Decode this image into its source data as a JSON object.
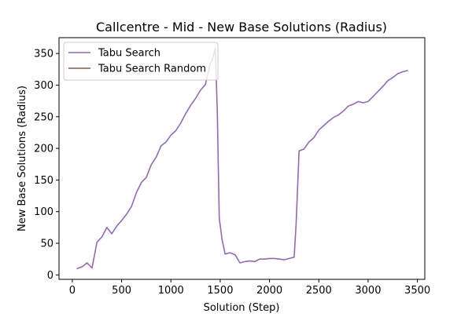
{
  "chart_data": {
    "type": "line",
    "title": "Callcentre - Mid - New Base Solutions (Radius)",
    "xlabel": "Solution (Step)",
    "ylabel": "New Base Solutions (Radius)",
    "xlim": [
      -135,
      3575
    ],
    "ylim": [
      -7,
      375
    ],
    "xticks": [
      0,
      500,
      1000,
      1500,
      2000,
      2500,
      3000,
      3500
    ],
    "yticks": [
      0,
      50,
      100,
      150,
      200,
      250,
      300,
      350
    ],
    "grid": false,
    "legend_position": "top-left",
    "series": [
      {
        "name": "Tabu Search",
        "color": "#9467bd",
        "x": [
          50,
          100,
          150,
          200,
          250,
          300,
          350,
          400,
          450,
          500,
          550,
          600,
          650,
          700,
          750,
          800,
          850,
          900,
          950,
          1000,
          1050,
          1100,
          1150,
          1200,
          1250,
          1300,
          1350,
          1400,
          1420,
          1450,
          1470,
          1490,
          1520,
          1550,
          1600,
          1650,
          1700,
          1750,
          1800,
          1850,
          1900,
          1950,
          2000,
          2050,
          2100,
          2150,
          2200,
          2250,
          2270,
          2300,
          2350,
          2400,
          2450,
          2500,
          2550,
          2600,
          2650,
          2700,
          2750,
          2800,
          2850,
          2900,
          2950,
          3000,
          3050,
          3100,
          3150,
          3200,
          3250,
          3300,
          3350,
          3400
        ],
        "y": [
          10,
          13,
          19,
          11,
          52,
          60,
          75,
          65,
          77,
          86,
          96,
          108,
          130,
          146,
          154,
          174,
          186,
          204,
          210,
          221,
          228,
          240,
          255,
          268,
          279,
          292,
          301,
          335,
          340,
          358,
          260,
          90,
          55,
          33,
          35,
          32,
          19,
          21,
          22,
          21,
          25,
          25,
          26,
          26,
          25,
          24,
          26,
          28,
          80,
          196,
          199,
          210,
          217,
          229,
          236,
          243,
          249,
          253,
          259,
          267,
          270,
          274,
          272,
          274,
          282,
          290,
          298,
          307,
          312,
          318,
          321,
          323
        ]
      },
      {
        "name": "Tabu Search Random",
        "color": "#8c564b",
        "x": [],
        "y": []
      }
    ]
  }
}
